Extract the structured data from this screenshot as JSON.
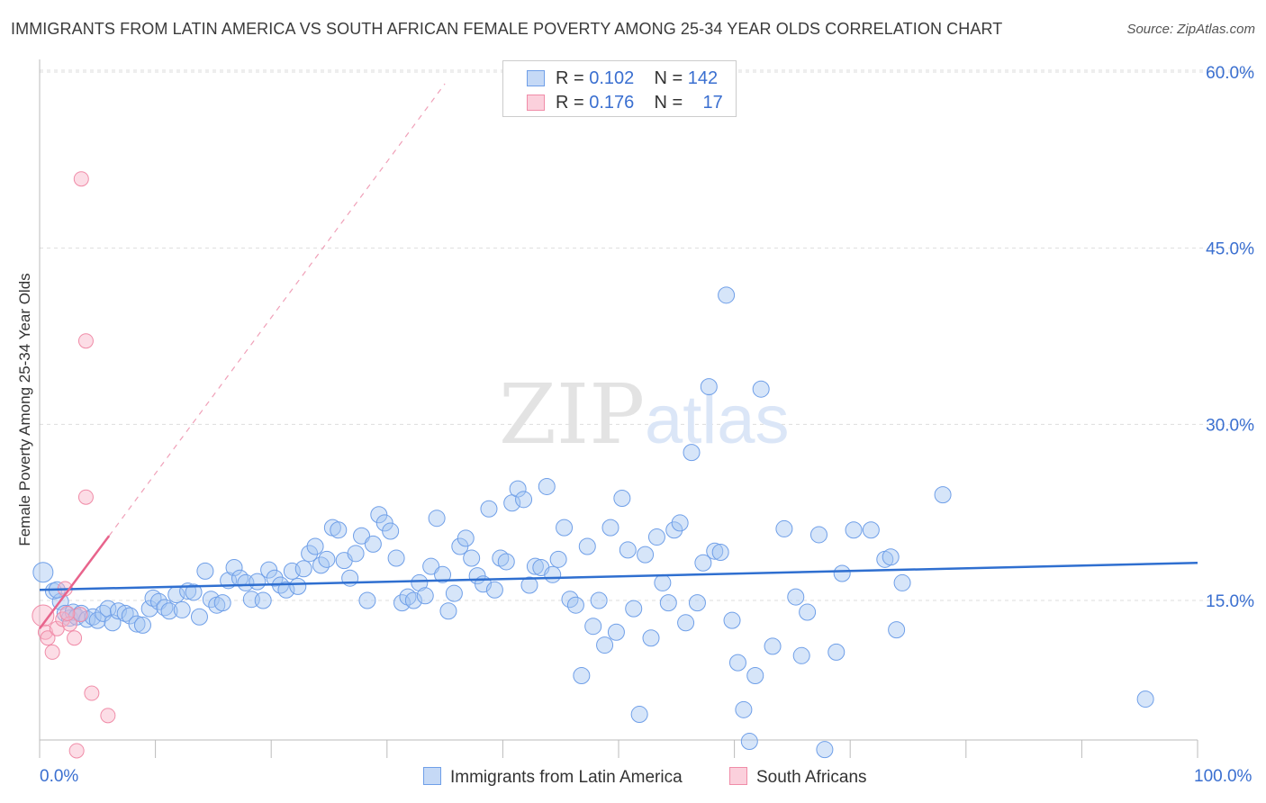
{
  "header": {
    "title": "IMMIGRANTS FROM LATIN AMERICA VS SOUTH AFRICAN FEMALE POVERTY AMONG 25-34 YEAR OLDS CORRELATION CHART",
    "source": "Source: ZipAtlas.com"
  },
  "watermark": {
    "zip": "ZIP",
    "atlas": "atlas"
  },
  "legend": {
    "rows": [
      {
        "r_label": "R =",
        "r_value": "0.102",
        "n_label": "N =",
        "n_value": "142",
        "color": "#6f9fe8"
      },
      {
        "r_label": "R =",
        "r_value": "0.176",
        "n_label": "N =",
        "n_value": "17",
        "color": "#f08ca8"
      }
    ]
  },
  "chart_data": {
    "type": "scatter",
    "title": "IMMIGRANTS FROM LATIN AMERICA VS SOUTH AFRICAN FEMALE POVERTY AMONG 25-34 YEAR OLDS CORRELATION CHART",
    "xlabel": "",
    "ylabel": "Female Poverty Among 25-34 Year Olds",
    "xlim": [
      0,
      100
    ],
    "ylim": [
      0,
      65
    ],
    "x_tick_labels": [
      "0.0%",
      "100.0%"
    ],
    "y_ticks": [
      15,
      30,
      45,
      60
    ],
    "y_tick_labels": [
      "15.0%",
      "30.0%",
      "45.0%",
      "60.0%"
    ],
    "grid": true,
    "legend_position": "bottom",
    "series": [
      {
        "name": "Immigrants from Latin America",
        "color": "#6f9fe8",
        "trend": {
          "x": [
            0,
            100
          ],
          "y": [
            15.9,
            18.2
          ]
        },
        "points": [
          [
            0.3,
            17.4
          ],
          [
            1.2,
            15.8
          ],
          [
            1.8,
            14.9
          ],
          [
            2.2,
            13.9
          ],
          [
            2.6,
            13.5
          ],
          [
            2.9,
            14.0
          ],
          [
            3.2,
            13.6
          ],
          [
            3.6,
            13.9
          ],
          [
            4.1,
            13.4
          ],
          [
            4.6,
            13.6
          ],
          [
            5.0,
            13.3
          ],
          [
            5.5,
            13.9
          ],
          [
            5.9,
            14.3
          ],
          [
            6.3,
            13.1
          ],
          [
            6.8,
            14.1
          ],
          [
            7.4,
            13.9
          ],
          [
            7.8,
            13.7
          ],
          [
            8.4,
            13.0
          ],
          [
            8.9,
            12.9
          ],
          [
            9.5,
            14.3
          ],
          [
            9.8,
            15.2
          ],
          [
            10.3,
            14.9
          ],
          [
            10.8,
            14.4
          ],
          [
            11.2,
            14.1
          ],
          [
            11.8,
            15.5
          ],
          [
            12.3,
            14.2
          ],
          [
            12.8,
            15.8
          ],
          [
            13.3,
            15.7
          ],
          [
            13.8,
            13.6
          ],
          [
            14.3,
            17.5
          ],
          [
            14.8,
            15.1
          ],
          [
            15.3,
            14.6
          ],
          [
            15.8,
            14.8
          ],
          [
            16.3,
            16.7
          ],
          [
            16.8,
            17.8
          ],
          [
            17.3,
            16.9
          ],
          [
            17.8,
            16.5
          ],
          [
            18.3,
            15.1
          ],
          [
            18.8,
            16.6
          ],
          [
            19.3,
            15.0
          ],
          [
            19.8,
            17.6
          ],
          [
            20.3,
            16.9
          ],
          [
            20.8,
            16.3
          ],
          [
            21.3,
            15.9
          ],
          [
            21.8,
            17.5
          ],
          [
            22.3,
            16.2
          ],
          [
            22.8,
            17.7
          ],
          [
            23.3,
            19.0
          ],
          [
            23.8,
            19.6
          ],
          [
            24.3,
            18.0
          ],
          [
            24.8,
            18.5
          ],
          [
            25.3,
            21.2
          ],
          [
            25.8,
            21.0
          ],
          [
            26.3,
            18.4
          ],
          [
            26.8,
            16.9
          ],
          [
            27.3,
            19.0
          ],
          [
            27.8,
            20.5
          ],
          [
            28.3,
            15.0
          ],
          [
            28.8,
            19.8
          ],
          [
            29.3,
            22.3
          ],
          [
            29.8,
            21.6
          ],
          [
            30.3,
            20.9
          ],
          [
            30.8,
            18.6
          ],
          [
            31.3,
            14.8
          ],
          [
            31.8,
            15.3
          ],
          [
            32.3,
            15.0
          ],
          [
            32.8,
            16.5
          ],
          [
            33.3,
            15.4
          ],
          [
            33.8,
            17.9
          ],
          [
            34.3,
            22.0
          ],
          [
            34.8,
            17.2
          ],
          [
            35.3,
            14.1
          ],
          [
            35.8,
            15.6
          ],
          [
            36.3,
            19.6
          ],
          [
            36.8,
            20.3
          ],
          [
            37.3,
            18.6
          ],
          [
            37.8,
            17.1
          ],
          [
            38.3,
            16.4
          ],
          [
            38.8,
            22.8
          ],
          [
            39.3,
            15.9
          ],
          [
            39.8,
            18.6
          ],
          [
            40.3,
            18.3
          ],
          [
            40.8,
            23.3
          ],
          [
            41.3,
            24.5
          ],
          [
            41.8,
            23.6
          ],
          [
            42.3,
            16.3
          ],
          [
            42.8,
            17.9
          ],
          [
            43.3,
            17.8
          ],
          [
            43.8,
            24.7
          ],
          [
            44.3,
            17.2
          ],
          [
            44.8,
            18.5
          ],
          [
            45.3,
            21.2
          ],
          [
            45.8,
            15.1
          ],
          [
            46.3,
            14.6
          ],
          [
            46.8,
            8.6
          ],
          [
            47.3,
            19.6
          ],
          [
            47.8,
            12.8
          ],
          [
            48.3,
            15.0
          ],
          [
            48.8,
            11.2
          ],
          [
            49.3,
            21.2
          ],
          [
            49.8,
            12.3
          ],
          [
            50.3,
            23.7
          ],
          [
            50.8,
            19.3
          ],
          [
            51.3,
            14.3
          ],
          [
            51.8,
            5.3
          ],
          [
            52.3,
            18.9
          ],
          [
            52.8,
            11.8
          ],
          [
            53.3,
            20.4
          ],
          [
            53.8,
            16.5
          ],
          [
            54.3,
            14.8
          ],
          [
            54.8,
            21.0
          ],
          [
            55.3,
            21.6
          ],
          [
            55.8,
            13.1
          ],
          [
            56.3,
            27.6
          ],
          [
            56.8,
            14.8
          ],
          [
            57.3,
            18.2
          ],
          [
            57.8,
            33.2
          ],
          [
            58.3,
            19.2
          ],
          [
            58.8,
            19.1
          ],
          [
            59.3,
            41.0
          ],
          [
            59.8,
            13.3
          ],
          [
            60.3,
            9.7
          ],
          [
            60.8,
            5.7
          ],
          [
            61.3,
            3.0
          ],
          [
            61.8,
            8.6
          ],
          [
            62.3,
            33.0
          ],
          [
            63.3,
            11.1
          ],
          [
            64.3,
            21.1
          ],
          [
            65.3,
            15.3
          ],
          [
            65.8,
            10.3
          ],
          [
            66.3,
            14.0
          ],
          [
            67.3,
            20.6
          ],
          [
            67.8,
            2.3
          ],
          [
            68.8,
            10.6
          ],
          [
            69.3,
            17.3
          ],
          [
            70.3,
            21.0
          ],
          [
            71.8,
            21.0
          ],
          [
            73.0,
            18.5
          ],
          [
            73.5,
            18.7
          ],
          [
            74.0,
            12.5
          ],
          [
            74.5,
            16.5
          ],
          [
            78.0,
            24.0
          ],
          [
            95.5,
            6.6
          ],
          [
            1.5,
            15.9
          ]
        ]
      },
      {
        "name": "South Africans",
        "color": "#f08ca8",
        "trend": {
          "x": [
            0,
            6.0
          ],
          "y": [
            12.6,
            20.5
          ]
        },
        "trend_extension": {
          "x": [
            6.0,
            35.0
          ],
          "y": [
            20.5,
            59.0
          ]
        },
        "points": [
          [
            0.3,
            13.7
          ],
          [
            0.5,
            12.3
          ],
          [
            0.7,
            11.8
          ],
          [
            1.1,
            10.6
          ],
          [
            1.5,
            12.6
          ],
          [
            2.0,
            13.4
          ],
          [
            2.2,
            16.0
          ],
          [
            2.6,
            13.0
          ],
          [
            3.0,
            11.8
          ],
          [
            3.5,
            13.8
          ],
          [
            4.0,
            23.8
          ],
          [
            4.0,
            37.1
          ],
          [
            3.6,
            50.9
          ],
          [
            3.2,
            2.2
          ],
          [
            4.5,
            7.1
          ],
          [
            5.9,
            5.2
          ],
          [
            2.4,
            13.9
          ]
        ]
      }
    ]
  }
}
